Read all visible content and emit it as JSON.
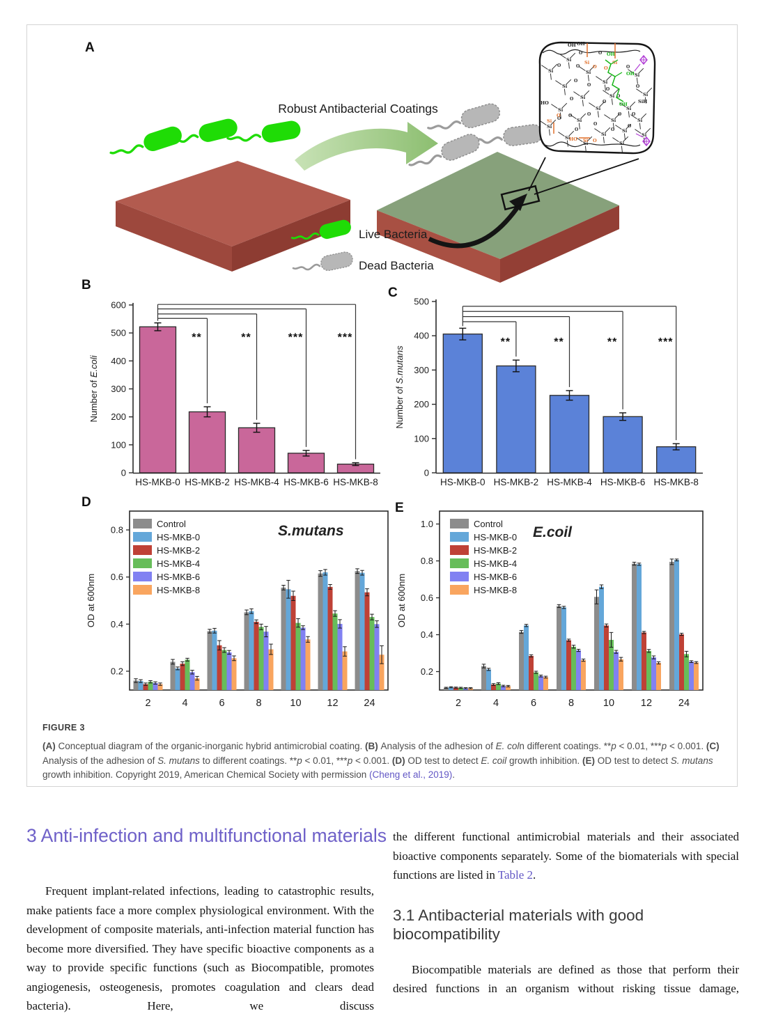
{
  "colors": {
    "heading_purple": "#6e60c8",
    "link": "#6257c5",
    "bar_pink": "#c9679a",
    "bar_blue": "#5b82d8",
    "live_green": "#1fdc06",
    "dead_gray": "#b7b7b7"
  },
  "figure": {
    "panel_labels": {
      "a": "A",
      "b": "B",
      "c": "C",
      "d": "D",
      "e": "E"
    },
    "panel_a": {
      "arrow_label": "Robust Antibacterial Coatings",
      "legend": [
        {
          "label": "Live Bacteria",
          "color": "#1fdc06"
        },
        {
          "label": "Dead Bacteria",
          "color": "#b7b7b7"
        }
      ],
      "inset_glyphs": {
        "si": "Si",
        "o": "O",
        "oh": "OH",
        "ho": "HO",
        "sih": "SiH"
      }
    },
    "caption_title": "FIGURE 3",
    "caption_segments": [
      {
        "t": "(A) ",
        "b": true
      },
      {
        "t": "Conceptual diagram of the organic-inorganic hybrid antimicrobial coating. "
      },
      {
        "t": "(B) ",
        "b": true
      },
      {
        "t": "Analysis of the adhesion of "
      },
      {
        "t": "E. col",
        "i": true
      },
      {
        "t": "n different coatings. **"
      },
      {
        "t": "p",
        "i": true
      },
      {
        "t": " < 0.01, ***"
      },
      {
        "t": "p",
        "i": true
      },
      {
        "t": " < 0.001. "
      },
      {
        "t": "(C) ",
        "b": true
      },
      {
        "t": "Analysis of the adhesion of "
      },
      {
        "t": "S. mutans",
        "i": true
      },
      {
        "t": " to different coatings. **"
      },
      {
        "t": "p",
        "i": true
      },
      {
        "t": " < 0.01, ***"
      },
      {
        "t": "p",
        "i": true
      },
      {
        "t": " < 0.001. "
      },
      {
        "t": "(D) ",
        "b": true
      },
      {
        "t": "OD test to detect "
      },
      {
        "t": "E. coil",
        "i": true
      },
      {
        "t": " growth inhibition. "
      },
      {
        "t": "(E) ",
        "b": true
      },
      {
        "t": "OD test to detect "
      },
      {
        "t": "S. mutans",
        "i": true
      },
      {
        "t": " growth inhibition. Copyright 2019, American Chemical Society with permission "
      },
      {
        "t": "(Cheng et al., 2019)",
        "link": true
      },
      {
        "t": "."
      }
    ]
  },
  "chart_data": [
    {
      "id": "panel_b",
      "type": "bar",
      "ylabel_plain": "Number of ",
      "ylabel_italic": "E.coli",
      "categories": [
        "HS-MKB-0",
        "HS-MKB-2",
        "HS-MKB-4",
        "HS-MKB-6",
        "HS-MKB-8"
      ],
      "values": [
        522,
        218,
        161,
        70,
        31
      ],
      "errors": [
        14,
        18,
        16,
        10,
        5
      ],
      "ylim": [
        0,
        600
      ],
      "yticks": [
        0,
        100,
        200,
        300,
        400,
        500,
        600
      ],
      "bar_color": "#c9679a",
      "sig_y": 472,
      "significance": [
        {
          "index": 1,
          "label": "**",
          "level": 552
        },
        {
          "index": 2,
          "label": "**",
          "level": 568
        },
        {
          "index": 3,
          "label": "***",
          "level": 586
        },
        {
          "index": 4,
          "label": "***",
          "level": 602
        }
      ]
    },
    {
      "id": "panel_c",
      "type": "bar",
      "ylabel_plain": "Number of ",
      "ylabel_italic": "S.mutans",
      "categories": [
        "HS-MKB-0",
        "HS-MKB-2",
        "HS-MKB-4",
        "HS-MKB-6",
        "HS-MKB-8"
      ],
      "values": [
        405,
        312,
        226,
        164,
        76
      ],
      "errors": [
        17,
        17,
        14,
        11,
        9
      ],
      "ylim": [
        0,
        500
      ],
      "yticks": [
        0,
        100,
        200,
        300,
        400,
        500
      ],
      "bar_color": "#5b82d8",
      "sig_y": 372,
      "significance": [
        {
          "index": 1,
          "label": "**",
          "level": 441
        },
        {
          "index": 2,
          "label": "**",
          "level": 456
        },
        {
          "index": 3,
          "label": "**",
          "level": 471
        },
        {
          "index": 4,
          "label": "***",
          "level": 486
        }
      ]
    },
    {
      "id": "panel_d",
      "type": "grouped_bar",
      "title": "S.mutans",
      "ylabel": "OD at 600nm",
      "categories": [
        "2",
        "4",
        "6",
        "8",
        "10",
        "12",
        "24"
      ],
      "ylim": [
        0.12,
        0.88
      ],
      "yticks": [
        0.2,
        0.4,
        0.6,
        0.8
      ],
      "series": [
        {
          "name": "Control",
          "color": "#8c8c8c",
          "values": [
            0.16,
            0.24,
            0.37,
            0.45,
            0.555,
            0.615,
            0.625
          ],
          "errors": [
            0.008,
            0.01,
            0.008,
            0.01,
            0.01,
            0.012,
            0.01
          ]
        },
        {
          "name": "HS-MKB-0",
          "color": "#64a7d9",
          "values": [
            0.158,
            0.212,
            0.372,
            0.455,
            0.548,
            0.62,
            0.618
          ],
          "errors": [
            0.006,
            0.006,
            0.01,
            0.01,
            0.038,
            0.012,
            0.01
          ]
        },
        {
          "name": "HS-MKB-2",
          "color": "#bf4136",
          "values": [
            0.145,
            0.232,
            0.31,
            0.41,
            0.52,
            0.558,
            0.535
          ],
          "errors": [
            0.005,
            0.008,
            0.02,
            0.008,
            0.02,
            0.01,
            0.015
          ]
        },
        {
          "name": "HS-MKB-4",
          "color": "#67bd5a",
          "values": [
            0.155,
            0.249,
            0.29,
            0.388,
            0.405,
            0.445,
            0.43
          ],
          "errors": [
            0.005,
            0.006,
            0.01,
            0.012,
            0.018,
            0.012,
            0.012
          ]
        },
        {
          "name": "HS-MKB-6",
          "color": "#8181f2",
          "values": [
            0.15,
            0.196,
            0.28,
            0.368,
            0.385,
            0.401,
            0.4
          ],
          "errors": [
            0.005,
            0.008,
            0.008,
            0.022,
            0.008,
            0.018,
            0.014
          ]
        },
        {
          "name": "HS-MKB-8",
          "color": "#f9a55f",
          "values": [
            0.145,
            0.17,
            0.255,
            0.293,
            0.335,
            0.284,
            0.27
          ],
          "errors": [
            0.005,
            0.008,
            0.01,
            0.022,
            0.012,
            0.02,
            0.038
          ]
        }
      ]
    },
    {
      "id": "panel_e",
      "type": "grouped_bar",
      "title": "E.coil",
      "ylabel": "OD at 600nm",
      "categories": [
        "2",
        "4",
        "6",
        "8",
        "10",
        "12",
        "24"
      ],
      "ylim": [
        0.1,
        1.07
      ],
      "yticks": [
        0.2,
        0.4,
        0.6,
        0.8,
        1.0
      ],
      "series": [
        {
          "name": "Control",
          "color": "#8c8c8c",
          "values": [
            0.112,
            0.23,
            0.415,
            0.555,
            0.605,
            0.785,
            0.795
          ],
          "errors": [
            0.003,
            0.01,
            0.008,
            0.008,
            0.038,
            0.008,
            0.015
          ]
        },
        {
          "name": "HS-MKB-0",
          "color": "#64a7d9",
          "values": [
            0.115,
            0.212,
            0.45,
            0.548,
            0.66,
            0.782,
            0.805
          ],
          "errors": [
            0.003,
            0.006,
            0.006,
            0.006,
            0.01,
            0.006,
            0.005
          ]
        },
        {
          "name": "HS-MKB-2",
          "color": "#bf4136",
          "values": [
            0.113,
            0.13,
            0.285,
            0.37,
            0.45,
            0.412,
            0.402
          ],
          "errors": [
            0.003,
            0.005,
            0.006,
            0.006,
            0.008,
            0.006,
            0.006
          ]
        },
        {
          "name": "HS-MKB-4",
          "color": "#67bd5a",
          "values": [
            0.112,
            0.135,
            0.196,
            0.335,
            0.372,
            0.312,
            0.295
          ],
          "errors": [
            0.003,
            0.005,
            0.006,
            0.008,
            0.04,
            0.008,
            0.015
          ]
        },
        {
          "name": "HS-MKB-6",
          "color": "#8181f2",
          "values": [
            0.11,
            0.122,
            0.176,
            0.315,
            0.307,
            0.277,
            0.254
          ],
          "errors": [
            0.003,
            0.004,
            0.005,
            0.006,
            0.008,
            0.008,
            0.005
          ]
        },
        {
          "name": "HS-MKB-8",
          "color": "#f9a55f",
          "values": [
            0.11,
            0.121,
            0.17,
            0.262,
            0.267,
            0.247,
            0.249
          ],
          "errors": [
            0.003,
            0.004,
            0.005,
            0.006,
            0.01,
            0.006,
            0.005
          ]
        }
      ]
    }
  ],
  "article": {
    "section_heading": "3 Anti-infection and multifunctional materials",
    "left_paragraph": "Frequent implant-related infections, leading to catastrophic results, make patients face a more complex physiological environment. With the development of composite materials, anti-infection material function has become more diversified. They have specific bioactive components as a way to provide specific functions (such as Biocompatible, promotes angiogenesis, osteogenesis, promotes coagulation and clears dead bacteria). Here, we discuss",
    "right_paragraph1_segments": [
      {
        "t": "the different functional antimicrobial materials and their associated bioactive components separately. Some of the biomaterials with special functions are listed in "
      },
      {
        "t": "Table 2",
        "link": true
      },
      {
        "t": "."
      }
    ],
    "subsection_heading": "3.1 Antibacterial materials with good biocompatibility",
    "right_paragraph2": "Biocompatible materials are defined as those that perform their desired functions in an organism without risking tissue damage,"
  }
}
